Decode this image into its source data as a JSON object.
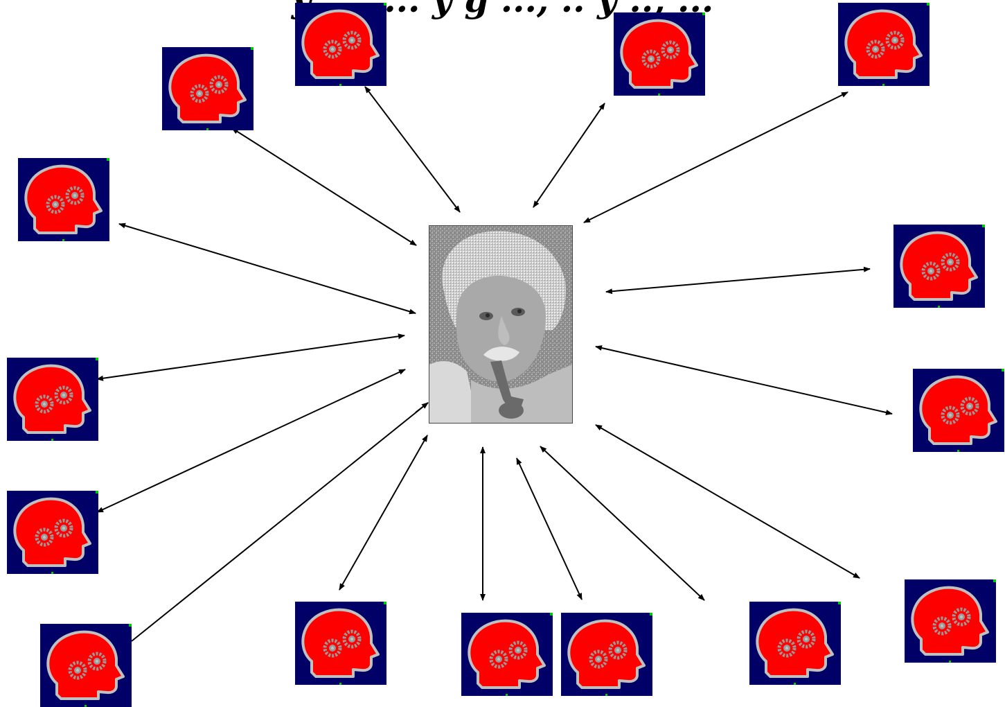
{
  "title_fragment": "y ..., ... y g ..., .. y .., ...",
  "colors": {
    "tile_background": "#000066",
    "head_fill": "#ff0000",
    "head_outline": "#c0c0c0",
    "gear": "#999999",
    "corner_dot": "#00cc00",
    "arrow": "#000000",
    "photo_bg": "#8a8a8a"
  },
  "icons": {
    "peripheral": "head-with-gears-icon",
    "center": "portrait-photo"
  }
}
